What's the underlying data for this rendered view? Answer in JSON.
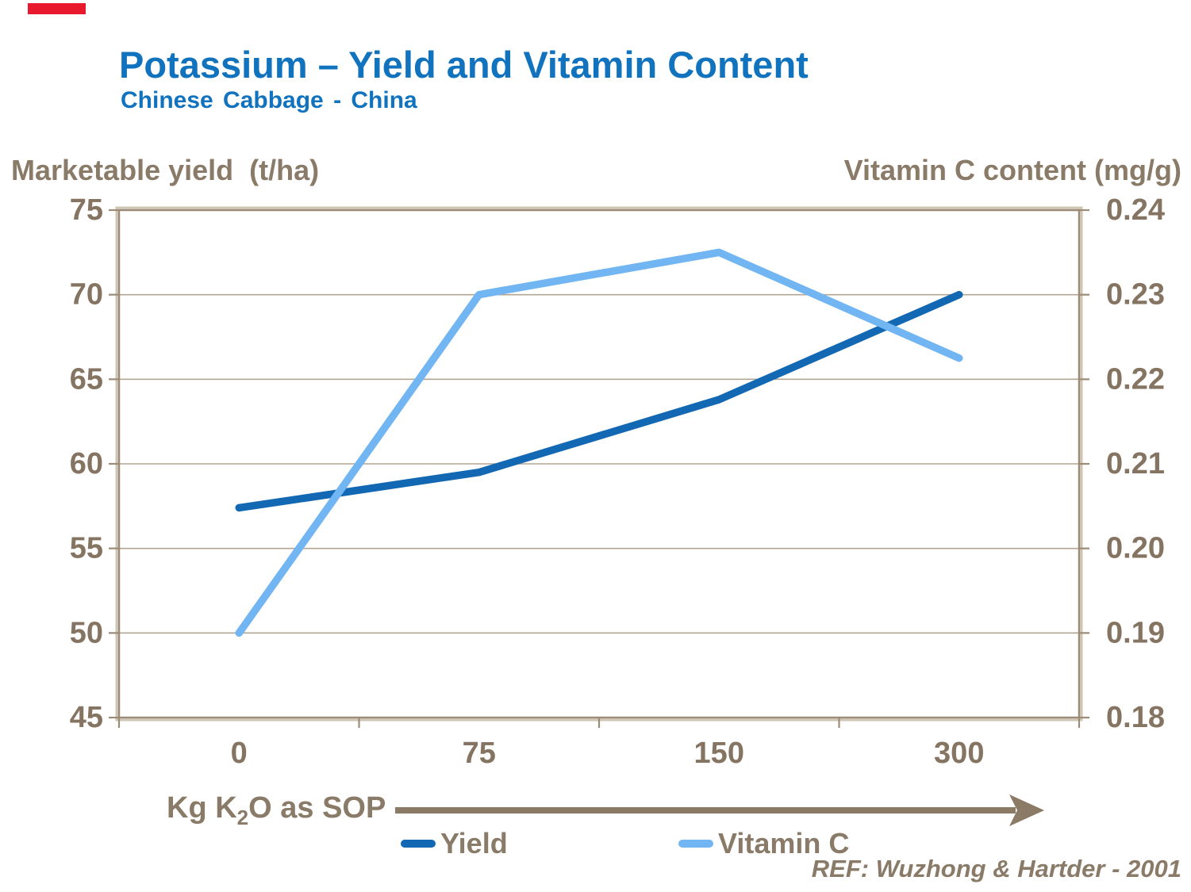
{
  "page": {
    "title": "Potassium – Yield and Vitamin Content",
    "subtitle": "Chinese Cabbage - China",
    "ref": "REF: Wuzhong & Hartder - 2001",
    "colors": {
      "title_blue": "#1173bd",
      "text_brown": "#8a7a68",
      "red_accent": "#e8192c"
    }
  },
  "chart_data": {
    "type": "line",
    "categories": [
      "0",
      "75",
      "150",
      "300"
    ],
    "x_axis_title": {
      "prefix": "Kg K",
      "sub": "2",
      "suffix": "O as SOP"
    },
    "left_axis": {
      "title": "Marketable yield  (t/ha)",
      "min": 45,
      "max": 75,
      "ticks": [
        "75",
        "70",
        "65",
        "60",
        "55",
        "50",
        "45"
      ]
    },
    "right_axis": {
      "title": "Vitamin C content (mg/g)",
      "min": 0.18,
      "max": 0.24,
      "ticks": [
        "0.24",
        "0.23",
        "0.22",
        "0.21",
        "0.20",
        "0.19",
        "0.18"
      ]
    },
    "series": [
      {
        "name": "Yield",
        "axis": "left",
        "color": "#1268b3",
        "values": [
          57.4,
          59.5,
          63.8,
          70.0
        ]
      },
      {
        "name": "Vitamin C",
        "axis": "right",
        "color": "#72b5f3",
        "values": [
          0.19,
          0.23,
          0.235,
          0.2225
        ]
      }
    ],
    "grid": true,
    "legend_position": "bottom",
    "style": {
      "grid_color": "#b2a592",
      "border_color": "#9c8b77",
      "border_light": "#cfc5b5",
      "tick_label_color": "#857461",
      "arrow_color": "#8a7a66"
    }
  }
}
